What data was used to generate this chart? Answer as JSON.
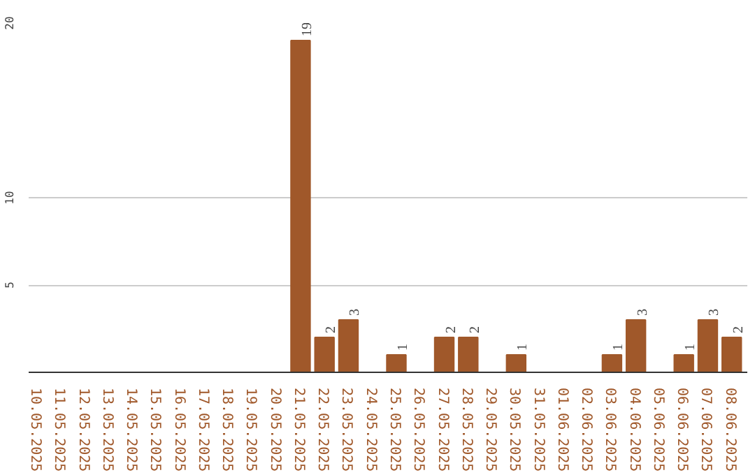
{
  "chart_data": {
    "type": "bar",
    "categories": [
      "10.05.2025",
      "11.05.2025",
      "12.05.2025",
      "13.05.2025",
      "14.05.2025",
      "15.05.2025",
      "16.05.2025",
      "17.05.2025",
      "18.05.2025",
      "19.05.2025",
      "20.05.2025",
      "21.05.2025",
      "22.05.2025",
      "23.05.2025",
      "24.05.2025",
      "25.05.2025",
      "26.05.2025",
      "27.05.2025",
      "28.05.2025",
      "29.05.2025",
      "30.05.2025",
      "31.05.2025",
      "01.06.2025",
      "02.06.2025",
      "03.06.2025",
      "04.06.2025",
      "05.06.2025",
      "06.06.2025",
      "07.06.2025",
      "08.06.2025"
    ],
    "values": [
      0,
      0,
      0,
      0,
      0,
      0,
      0,
      0,
      0,
      0,
      0,
      19,
      2,
      3,
      0,
      1,
      0,
      2,
      2,
      0,
      1,
      0,
      0,
      0,
      1,
      3,
      0,
      1,
      3,
      2
    ],
    "value_labels": [
      null,
      null,
      null,
      null,
      null,
      null,
      null,
      null,
      null,
      null,
      null,
      "19",
      "2",
      "3",
      null,
      "1",
      null,
      "2",
      "2",
      null,
      "1",
      null,
      null,
      null,
      "1",
      "3",
      null,
      "1",
      "3",
      "2"
    ],
    "color": "#a0582a",
    "ylim": [
      0,
      20
    ],
    "yticks": [
      5,
      10,
      20
    ],
    "grid": "y"
  }
}
